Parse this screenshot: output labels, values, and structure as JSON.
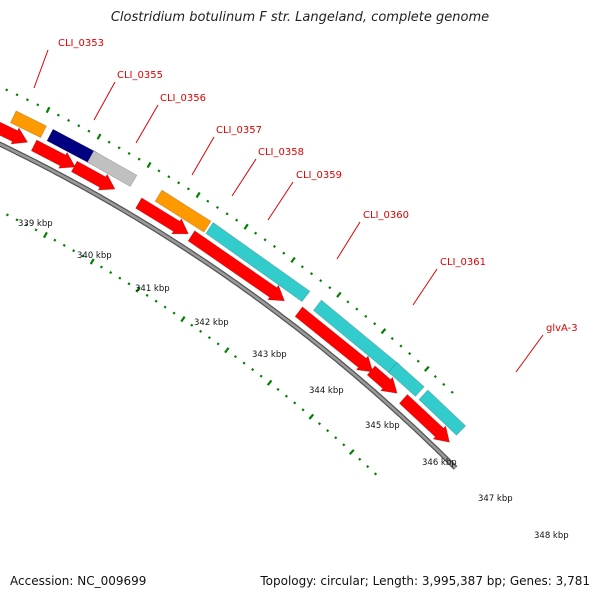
{
  "title": "Clostridium botulinum F str. Langeland, complete genome",
  "footer": {
    "accession": "Accession: NC_009699",
    "summary": "Topology: circular; Length: 3,995,387 bp; Genes: 3,781"
  },
  "gene_labels": [
    "CLI_0353",
    "CLI_0355",
    "CLI_0356",
    "CLI_0357",
    "CLI_0358",
    "CLI_0359",
    "CLI_0360",
    "CLI_0361",
    "glvA-3"
  ],
  "kbp_labels": [
    "339 kbp",
    "340 kbp",
    "341 kbp",
    "342 kbp",
    "343 kbp",
    "344 kbp",
    "345 kbp",
    "346 kbp",
    "347 kbp",
    "348 kbp"
  ],
  "colors": {
    "cds": "#ff0000",
    "orange": "#ff9900",
    "cyan": "#33cccc",
    "gray": "#666666",
    "navy": "#000080",
    "lightgray": "#c0c0c0",
    "blue": "#0000ff",
    "backbone": "#808080",
    "tick": "#008000",
    "label": "#e00000"
  }
}
